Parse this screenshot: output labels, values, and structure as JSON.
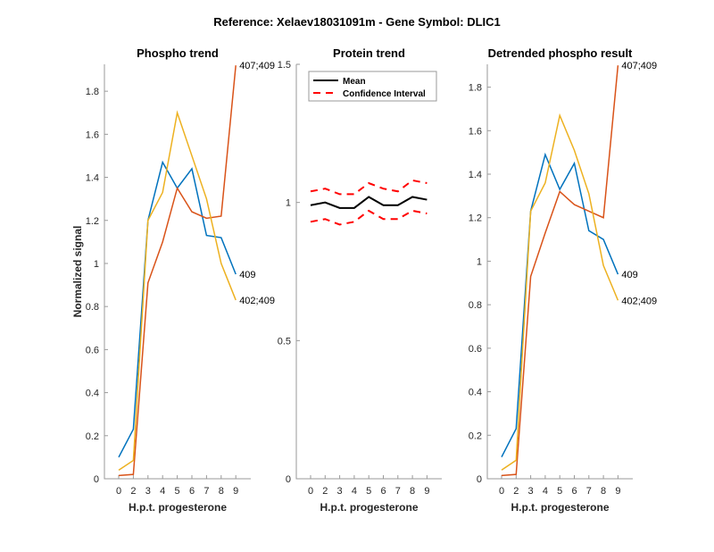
{
  "figure": {
    "title": "Reference:  Xelaev18031091m - Gene Symbol:  DLIC1"
  },
  "colors": {
    "blue": "#0072BD",
    "orange": "#D95319",
    "yellow": "#EDB120",
    "mean": "#000000",
    "ci": "#FF0000"
  },
  "chart_data": [
    {
      "type": "line",
      "title": "Phospho trend",
      "xlabel": "H.p.t. progesterone",
      "ylabel": "Normalized signal",
      "categories": [
        "0",
        "2",
        "3",
        "4",
        "5",
        "6",
        "7",
        "8",
        "9"
      ],
      "ylim": [
        0,
        1.925
      ],
      "yticks": [
        "0",
        "0.2",
        "0.4",
        "0.6",
        "0.8",
        "1",
        "1.2",
        "1.4",
        "1.6",
        "1.8"
      ],
      "ytick_values": [
        0,
        0.2,
        0.4,
        0.6,
        0.8,
        1,
        1.2,
        1.4,
        1.6,
        1.8
      ],
      "series": [
        {
          "name": "409",
          "color": "blue",
          "values": [
            0.1,
            0.23,
            1.2,
            1.47,
            1.35,
            1.44,
            1.13,
            1.12,
            0.95
          ]
        },
        {
          "name": "407;409",
          "color": "orange",
          "values": [
            0.015,
            0.02,
            0.91,
            1.1,
            1.35,
            1.24,
            1.21,
            1.22,
            1.92
          ]
        },
        {
          "name": "402;409",
          "color": "yellow",
          "values": [
            0.04,
            0.085,
            1.2,
            1.33,
            1.7,
            1.5,
            1.3,
            1.0,
            0.83
          ]
        }
      ],
      "end_labels": [
        "409",
        "407;409",
        "402;409"
      ]
    },
    {
      "type": "line",
      "title": "Protein trend",
      "xlabel": "H.p.t. progesterone",
      "ylabel": "",
      "categories": [
        "0",
        "2",
        "3",
        "4",
        "5",
        "6",
        "7",
        "8",
        "9"
      ],
      "ylim": [
        0,
        1.5
      ],
      "yticks": [
        "0",
        "0.5",
        "1",
        "1.5"
      ],
      "ytick_values": [
        0,
        0.5,
        1,
        1.5
      ],
      "legend": {
        "position": "top-left",
        "entries": [
          "Mean",
          "Confidence Interval"
        ]
      },
      "series": [
        {
          "name": "Mean",
          "color": "mean",
          "style": "solid",
          "values": [
            0.99,
            1.0,
            0.98,
            0.98,
            1.02,
            0.99,
            0.99,
            1.02,
            1.01
          ]
        },
        {
          "name": "Confidence Interval upper",
          "color": "ci",
          "style": "dashed",
          "values": [
            1.04,
            1.05,
            1.03,
            1.03,
            1.07,
            1.05,
            1.04,
            1.08,
            1.07
          ]
        },
        {
          "name": "Confidence Interval lower",
          "color": "ci",
          "style": "dashed",
          "values": [
            0.93,
            0.94,
            0.92,
            0.93,
            0.97,
            0.94,
            0.94,
            0.97,
            0.96
          ]
        }
      ]
    },
    {
      "type": "line",
      "title": "Detrended phospho result",
      "xlabel": "H.p.t. progesterone",
      "ylabel": "",
      "categories": [
        "0",
        "2",
        "3",
        "4",
        "5",
        "6",
        "7",
        "8",
        "9"
      ],
      "ylim": [
        0,
        1.905
      ],
      "yticks": [
        "0",
        "0.2",
        "0.4",
        "0.6",
        "0.8",
        "1",
        "1.2",
        "1.4",
        "1.6",
        "1.8"
      ],
      "ytick_values": [
        0,
        0.2,
        0.4,
        0.6,
        0.8,
        1,
        1.2,
        1.4,
        1.6,
        1.8
      ],
      "series": [
        {
          "name": "409",
          "color": "blue",
          "values": [
            0.1,
            0.23,
            1.23,
            1.49,
            1.33,
            1.45,
            1.14,
            1.1,
            0.94
          ]
        },
        {
          "name": "407;409",
          "color": "orange",
          "values": [
            0.015,
            0.02,
            0.93,
            1.13,
            1.32,
            1.26,
            1.23,
            1.2,
            1.9
          ]
        },
        {
          "name": "402;409",
          "color": "yellow",
          "values": [
            0.04,
            0.085,
            1.23,
            1.36,
            1.67,
            1.51,
            1.31,
            0.98,
            0.82
          ]
        }
      ],
      "end_labels": [
        "409",
        "407;409",
        "402;409"
      ]
    }
  ]
}
